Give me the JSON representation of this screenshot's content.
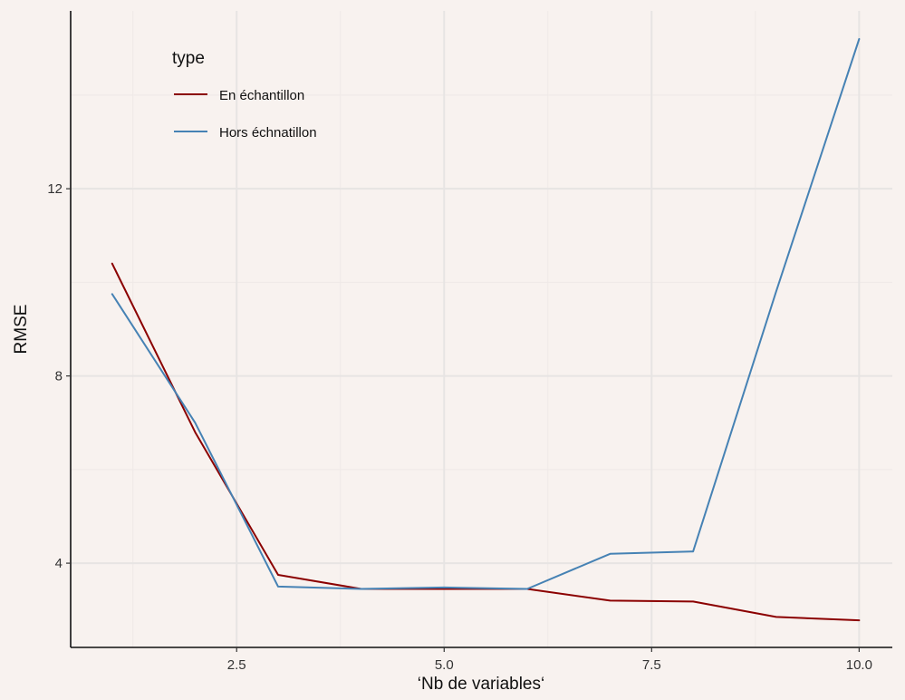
{
  "chart_data": {
    "type": "line",
    "xlabel": "‘Nb de variables‘",
    "ylabel": "RMSE",
    "xlim": [
      0.5,
      10.4
    ],
    "ylim": [
      2.2,
      15.8
    ],
    "x_ticks": [
      "2.5",
      "5.0",
      "7.5",
      "10.0"
    ],
    "y_ticks": [
      "4",
      "8",
      "12"
    ],
    "grid": true,
    "legend": {
      "title": "type",
      "position": "top-left"
    },
    "x": [
      1,
      2,
      3,
      4,
      5,
      6,
      7,
      8,
      9,
      10
    ],
    "series": [
      {
        "name": "En échantillon",
        "color": "#8b0000",
        "values": [
          10.4,
          6.8,
          3.75,
          3.45,
          3.45,
          3.45,
          3.2,
          3.18,
          2.85,
          2.78
        ]
      },
      {
        "name": "Hors échnatillon",
        "color": "#4682b4",
        "values": [
          9.75,
          7.0,
          3.5,
          3.45,
          3.48,
          3.45,
          4.2,
          4.25,
          9.8,
          15.2
        ]
      }
    ]
  }
}
